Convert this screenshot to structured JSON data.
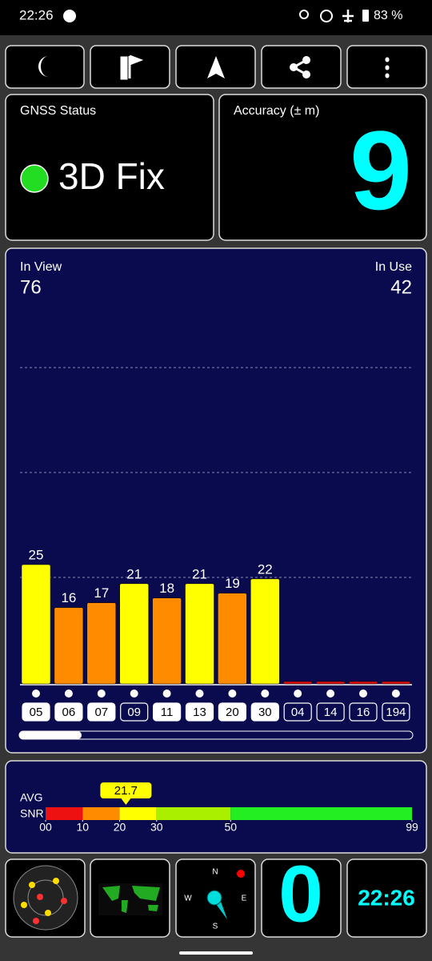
{
  "status_bar": {
    "time": "22:26",
    "battery": "83 %"
  },
  "gnss_status": {
    "label": "GNSS Status",
    "value": "3D Fix"
  },
  "accuracy": {
    "label": "Accuracy (± m)",
    "value": "9"
  },
  "satellites": {
    "in_view_label": "In View",
    "in_view": "76",
    "in_use_label": "In Use",
    "in_use": "42",
    "ids": [
      "05",
      "06",
      "07",
      "09",
      "11",
      "13",
      "20",
      "30",
      "04",
      "14",
      "16",
      "194"
    ],
    "snr": [
      25,
      16,
      17,
      21,
      18,
      21,
      19,
      22,
      0,
      0,
      0,
      0
    ],
    "colors": [
      "#ffff00",
      "#ff8c00",
      "#ff8c00",
      "#ffff00",
      "#ff8c00",
      "#ffff00",
      "#ff8c00",
      "#ffff00",
      "#e01010",
      "#e01010",
      "#e01010",
      "#e01010"
    ],
    "used": [
      true,
      true,
      true,
      false,
      true,
      true,
      true,
      true,
      false,
      false,
      false,
      false
    ]
  },
  "snr_meter": {
    "avg_label": "AVG",
    "snr_label": "SNR",
    "average": 21.7,
    "range": [
      0,
      99
    ],
    "ticks": [
      {
        "value": 0,
        "label": "00"
      },
      10,
      20,
      30,
      50,
      99
    ]
  },
  "tiles": {
    "speed": "0",
    "clock": "22:26",
    "compass": {
      "n": "N",
      "e": "E",
      "s": "S",
      "w": "W"
    }
  }
}
